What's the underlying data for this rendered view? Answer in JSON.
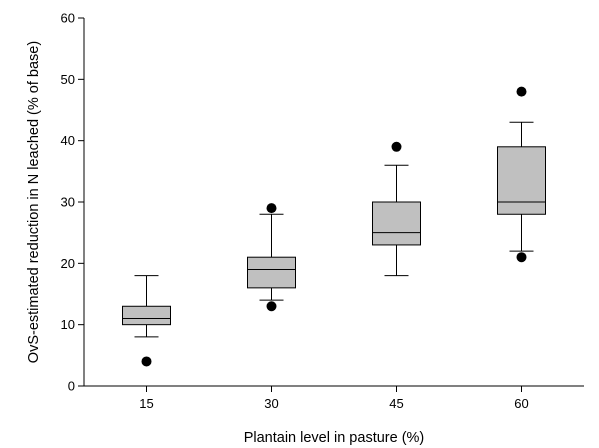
{
  "chart_data": {
    "type": "box",
    "title": "",
    "xlabel": "Plantain level in pasture (%)",
    "ylabel": "OvS-estimated reduction in N leached (% of base)",
    "ylim": [
      0,
      60
    ],
    "yticks": [
      0,
      10,
      20,
      30,
      40,
      50,
      60
    ],
    "categories": [
      "15",
      "30",
      "45",
      "60"
    ],
    "grid": false,
    "legend": "none",
    "box_color": "#c0c0c0",
    "boxes": [
      {
        "category": "15",
        "whisker_low": 8,
        "q1": 10,
        "median": 11,
        "q3": 13,
        "whisker_high": 18,
        "outliers": [
          4
        ]
      },
      {
        "category": "30",
        "whisker_low": 14,
        "q1": 16,
        "median": 19,
        "q3": 21,
        "whisker_high": 28,
        "outliers": [
          13,
          29
        ]
      },
      {
        "category": "45",
        "whisker_low": 18,
        "q1": 23,
        "median": 25,
        "q3": 30,
        "whisker_high": 36,
        "outliers": [
          39
        ]
      },
      {
        "category": "60",
        "whisker_low": 22,
        "q1": 28,
        "median": 30,
        "q3": 39,
        "whisker_high": 43,
        "outliers": [
          21,
          48
        ]
      }
    ]
  }
}
